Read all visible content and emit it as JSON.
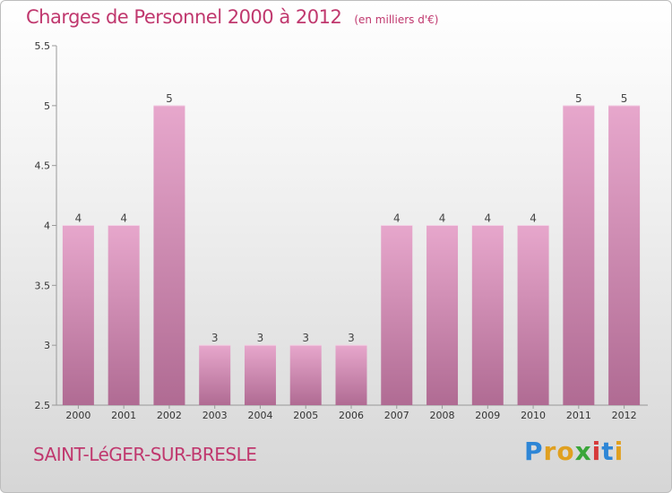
{
  "title": "Charges de Personnel 2000 à 2012",
  "subtitle": "(en milliers d'€)",
  "commune": "SAINT-LéGER-SUR-BRESLE",
  "brand": {
    "letters": [
      "P",
      "r",
      "o",
      "x",
      "i",
      "t",
      "i"
    ],
    "colors": [
      "#2e86d6",
      "#e0a020",
      "#e0a020",
      "#3aa63a",
      "#d63a3a",
      "#2e86d6",
      "#e0a020"
    ]
  },
  "colors": {
    "bar_top": "#e7a7cc",
    "bar_bottom": "#b06b93",
    "title": "#c0386e"
  },
  "chart_data": {
    "type": "bar",
    "categories": [
      "2000",
      "2001",
      "2002",
      "2003",
      "2004",
      "2005",
      "2006",
      "2007",
      "2008",
      "2009",
      "2010",
      "2011",
      "2012"
    ],
    "values": [
      4,
      4,
      5,
      3,
      3,
      3,
      3,
      4,
      4,
      4,
      4,
      5,
      5
    ],
    "data_labels": [
      "4",
      "4",
      "5",
      "3",
      "3",
      "3",
      "3",
      "4",
      "4",
      "4",
      "4",
      "5",
      "5"
    ],
    "ylim": [
      2.5,
      5.5
    ],
    "yticks": [
      2.5,
      3,
      3.5,
      4,
      4.5,
      5,
      5.5
    ],
    "ytick_labels": [
      "2.5",
      "3",
      "3.5",
      "4",
      "4.5",
      "5",
      "5.5"
    ],
    "grid": false,
    "xlabel": "",
    "ylabel": ""
  }
}
